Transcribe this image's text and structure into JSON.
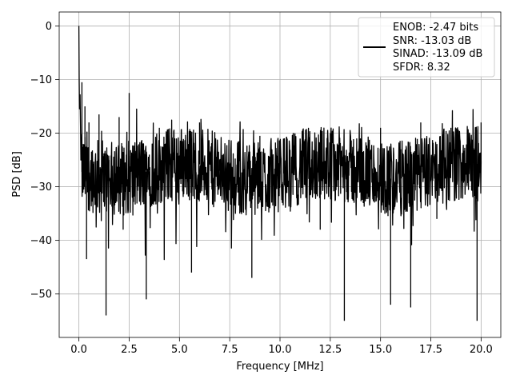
{
  "chart_data": {
    "type": "line",
    "xlabel": "Frequency [MHz]",
    "ylabel": "PSD [dB]",
    "xlim": [
      -0.98,
      20.98
    ],
    "ylim": [
      -58.1,
      2.6
    ],
    "xticks": [
      0.0,
      2.5,
      5.0,
      7.5,
      10.0,
      12.5,
      15.0,
      17.5,
      20.0
    ],
    "xtick_labels": [
      "0.0",
      "2.5",
      "5.0",
      "7.5",
      "10.0",
      "12.5",
      "15.0",
      "17.5",
      "20.0"
    ],
    "yticks": [
      0,
      -10,
      -20,
      -30,
      -40,
      -50
    ],
    "ytick_labels": [
      "0",
      "−10",
      "−20",
      "−30",
      "−40",
      "−50"
    ],
    "grid": true,
    "legend_position": "top-right",
    "legend": {
      "entries": [
        "ENOB: -2.47 bits",
        "SNR: -13.03 dB",
        "SINAD: -13.09 dB",
        "SFDR: 8.32"
      ]
    },
    "series": [
      {
        "color": "#000000",
        "description": "noisy PSD trace over 0 to 20 MHz, mostly between -20 and -38 dB",
        "x": [
          0.0,
          0.01,
          0.03,
          0.06,
          0.1,
          0.15,
          0.22,
          0.3,
          0.38,
          0.45,
          0.5,
          0.7,
          1.0,
          1.35,
          1.5,
          2.0,
          2.2,
          2.5,
          3.0,
          3.35,
          3.5,
          4.0,
          5.0,
          5.6,
          6.0,
          7.0,
          8.0,
          8.6,
          9.0,
          10.0,
          11.0,
          12.0,
          12.5,
          13.2,
          14.0,
          15.0,
          15.5,
          16.0,
          16.5,
          17.0,
          17.8,
          18.5,
          19.0,
          19.4,
          19.8,
          20.0
        ],
        "y": [
          0.0,
          -8.5,
          -16.0,
          -12.5,
          -25.0,
          -10.5,
          -30.0,
          -15.0,
          -43.5,
          -24.0,
          -18.0,
          -30.0,
          -16.5,
          -54.0,
          -25.0,
          -17.0,
          -38.0,
          -12.5,
          -30.0,
          -51.0,
          -24.0,
          -19.0,
          -28.0,
          -46.0,
          -18.0,
          -25.0,
          -35.0,
          -47.0,
          -20.5,
          -27.0,
          -21.0,
          -38.0,
          -20.0,
          -55.0,
          -25.0,
          -19.0,
          -52.0,
          -23.0,
          -52.5,
          -18.0,
          -36.0,
          -19.0,
          -32.0,
          -26.0,
          -55.0,
          -18.0
        ]
      }
    ]
  }
}
